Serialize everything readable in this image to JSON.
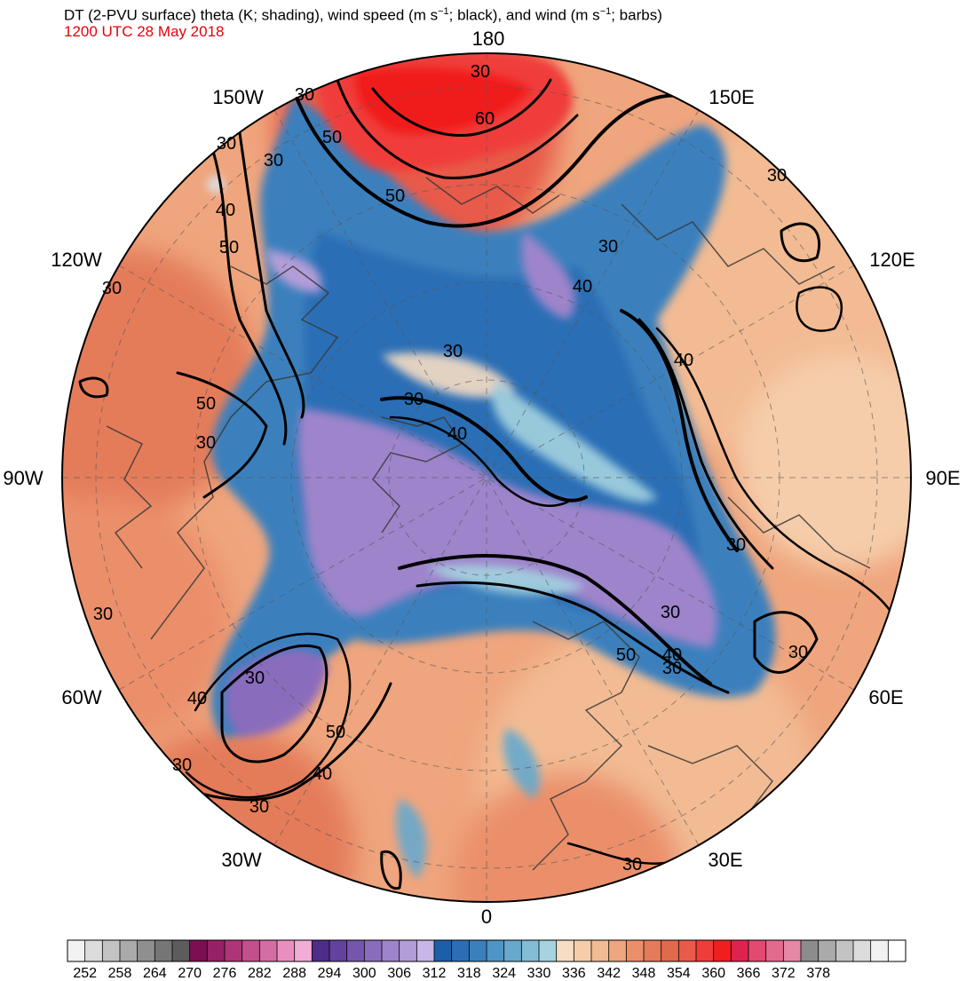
{
  "header": {
    "title_before": "DT (2-PVU surface) theta (K; shading), wind speed (m s",
    "sup1": "−1",
    "title_middle": "; black), and wind (m s",
    "sup2": "−1",
    "title_after": "; barbs)",
    "subtitle": "1200 UTC 28 May 2018"
  },
  "longitude_labels": {
    "lon_180": "180",
    "lon_150w": "150W",
    "lon_150e": "150E",
    "lon_120w": "120W",
    "lon_120e": "120E",
    "lon_90w": "90W",
    "lon_90e": "90E",
    "lon_60w": "60W",
    "lon_60e": "60E",
    "lon_30w": "30W",
    "lon_30e": "30E",
    "lon_0": "0"
  },
  "contour_labels": [
    {
      "text": "30"
    },
    {
      "text": "30"
    },
    {
      "text": "60"
    },
    {
      "text": "50"
    },
    {
      "text": "50"
    },
    {
      "text": "30"
    },
    {
      "text": "30"
    },
    {
      "text": "40"
    },
    {
      "text": "50"
    },
    {
      "text": "30"
    },
    {
      "text": "30"
    },
    {
      "text": "40"
    },
    {
      "text": "30"
    },
    {
      "text": "40"
    },
    {
      "text": "30"
    },
    {
      "text": "40"
    },
    {
      "text": "50"
    },
    {
      "text": "30"
    },
    {
      "text": "30"
    },
    {
      "text": "30"
    },
    {
      "text": "40"
    },
    {
      "text": "50"
    },
    {
      "text": "30"
    },
    {
      "text": "30"
    },
    {
      "text": "30"
    },
    {
      "text": "40"
    },
    {
      "text": "30"
    },
    {
      "text": "40"
    },
    {
      "text": "50"
    },
    {
      "text": "30"
    },
    {
      "text": "30"
    },
    {
      "text": "30"
    },
    {
      "text": "30"
    }
  ],
  "colorbar": {
    "colors": [
      "#f2f2f2",
      "#dcdcdc",
      "#c3c3c3",
      "#aaaaaa",
      "#8f8f8f",
      "#767676",
      "#5c5c5c",
      "#7c0f52",
      "#962165",
      "#ad3679",
      "#c2508e",
      "#d46da4",
      "#e98fc0",
      "#f2acd6",
      "#4e2d8a",
      "#63419e",
      "#7656ad",
      "#8a6cbd",
      "#9e84cb",
      "#b39dd8",
      "#c8b6e6",
      "#1c5ea8",
      "#2b6eb5",
      "#3b80bd",
      "#4e94c4",
      "#66a9cd",
      "#82bcd5",
      "#a5d3e0",
      "#f7ddc4",
      "#f5cdaa",
      "#f2bb93",
      "#efa57d",
      "#eb8f6a",
      "#e47b5a",
      "#e06a4c",
      "#e85a4a",
      "#f03c3a",
      "#f01e1e",
      "#e0234e",
      "#e24a70",
      "#e36a8c",
      "#e488a6",
      "#8c8c8c",
      "#aaaaaa",
      "#c3c3c3",
      "#dcdcdc",
      "#f2f2f2",
      "#ffffff"
    ],
    "tick_labels": [
      "252",
      "258",
      "264",
      "270",
      "276",
      "282",
      "288",
      "294",
      "300",
      "306",
      "312",
      "318",
      "324",
      "330",
      "336",
      "342",
      "348",
      "354",
      "360",
      "366",
      "372",
      "378"
    ]
  }
}
